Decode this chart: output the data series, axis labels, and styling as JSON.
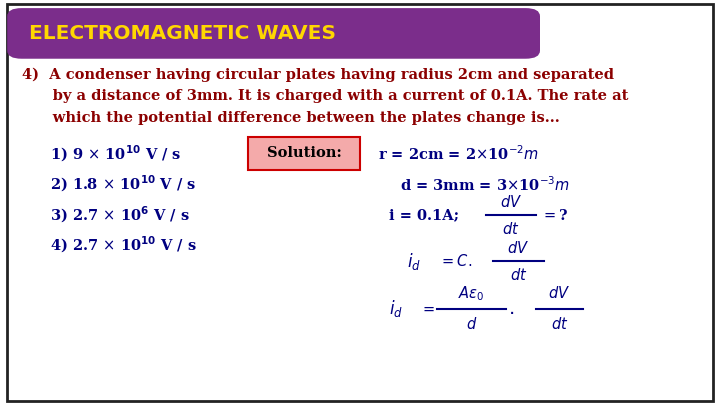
{
  "title": "ELECTROMAGNETIC WAVES",
  "title_bg": "#7B2D8B",
  "title_color": "#FFD700",
  "bg_color": "#FFFFFF",
  "border_color": "#222222",
  "question_color": "#8B0000",
  "options_color": "#000080",
  "solution_color": "#000080",
  "solution_box_color": "#F4AAAA",
  "solution_box_border": "#CC0000",
  "q_line1": "4)  A condenser having circular plates having radius 2cm and separated",
  "q_line2": "      by a distance of 3mm. It is charged with a current of 0.1A. The rate at",
  "q_line3": "      which the potential difference between the plates change is..."
}
